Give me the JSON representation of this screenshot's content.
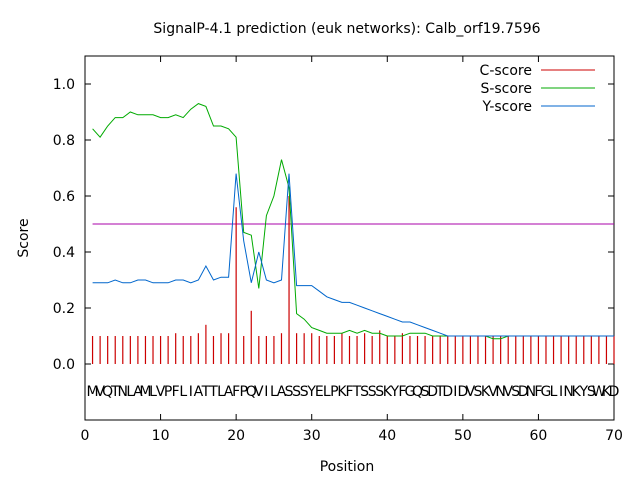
{
  "chart_data": {
    "type": "line",
    "title": "SignalP-4.1 prediction (euk networks): Calb_orf19.7596",
    "xlabel": "Position",
    "ylabel": "Score",
    "xlim": [
      0,
      70
    ],
    "ylim": [
      -0.2,
      1.1
    ],
    "x_ticks": [
      0,
      10,
      20,
      30,
      40,
      50,
      60,
      70
    ],
    "y_ticks": [
      0.0,
      0.2,
      0.4,
      0.6,
      0.8,
      1.0
    ],
    "y_tick_labels": [
      "0.0",
      "0.2",
      "0.4",
      "0.6",
      "0.8",
      "1.0"
    ],
    "threshold": 0.5,
    "legend_position": "top-right",
    "grid": false,
    "sequence": "MVQTNLAMLVPFLIATTLAFPQVILASSSYELPKFTSSSKYFGQSDTDIDVSKVNVSDNFGLINKYSWKD",
    "colors": {
      "c_score": "#cc0000",
      "s_score": "#00aa00",
      "y_score": "#0066cc",
      "threshold": "#aa00aa"
    },
    "series": [
      {
        "name": "C-score",
        "style": "impulse",
        "values": [
          0.1,
          0.1,
          0.1,
          0.1,
          0.1,
          0.1,
          0.1,
          0.1,
          0.1,
          0.1,
          0.1,
          0.11,
          0.1,
          0.1,
          0.11,
          0.14,
          0.1,
          0.11,
          0.11,
          0.56,
          0.1,
          0.19,
          0.1,
          0.1,
          0.1,
          0.11,
          0.6,
          0.11,
          0.11,
          0.11,
          0.1,
          0.1,
          0.1,
          0.11,
          0.1,
          0.1,
          0.11,
          0.1,
          0.12,
          0.1,
          0.1,
          0.11,
          0.1,
          0.1,
          0.1,
          0.1,
          0.1,
          0.1,
          0.1,
          0.1,
          0.1,
          0.1,
          0.1,
          0.1,
          0.1,
          0.1,
          0.1,
          0.1,
          0.1,
          0.1,
          0.1,
          0.1,
          0.1,
          0.1,
          0.1,
          0.1,
          0.1,
          0.1,
          0.1,
          0.1
        ]
      },
      {
        "name": "S-score",
        "style": "line",
        "values": [
          0.84,
          0.81,
          0.85,
          0.88,
          0.88,
          0.9,
          0.89,
          0.89,
          0.89,
          0.88,
          0.88,
          0.89,
          0.88,
          0.91,
          0.93,
          0.92,
          0.85,
          0.85,
          0.84,
          0.81,
          0.47,
          0.46,
          0.27,
          0.53,
          0.6,
          0.73,
          0.63,
          0.18,
          0.16,
          0.13,
          0.12,
          0.11,
          0.11,
          0.11,
          0.12,
          0.11,
          0.12,
          0.11,
          0.11,
          0.1,
          0.1,
          0.1,
          0.11,
          0.11,
          0.11,
          0.1,
          0.1,
          0.1,
          0.1,
          0.1,
          0.1,
          0.1,
          0.1,
          0.09,
          0.09,
          0.1,
          0.1,
          0.1,
          0.1,
          0.1,
          0.1,
          0.1,
          0.1,
          0.1,
          0.1,
          0.1,
          0.1,
          0.1,
          0.1,
          0.1
        ]
      },
      {
        "name": "Y-score",
        "style": "line",
        "values": [
          0.29,
          0.29,
          0.29,
          0.3,
          0.29,
          0.29,
          0.3,
          0.3,
          0.29,
          0.29,
          0.29,
          0.3,
          0.3,
          0.29,
          0.3,
          0.35,
          0.3,
          0.31,
          0.31,
          0.68,
          0.44,
          0.29,
          0.4,
          0.3,
          0.29,
          0.3,
          0.68,
          0.28,
          0.28,
          0.28,
          0.26,
          0.24,
          0.23,
          0.22,
          0.22,
          0.21,
          0.2,
          0.19,
          0.18,
          0.17,
          0.16,
          0.15,
          0.15,
          0.14,
          0.13,
          0.12,
          0.11,
          0.1,
          0.1,
          0.1,
          0.1,
          0.1,
          0.1,
          0.1,
          0.1,
          0.1,
          0.1,
          0.1,
          0.1,
          0.1,
          0.1,
          0.1,
          0.1,
          0.1,
          0.1,
          0.1,
          0.1,
          0.1,
          0.1,
          0.1
        ]
      }
    ]
  }
}
